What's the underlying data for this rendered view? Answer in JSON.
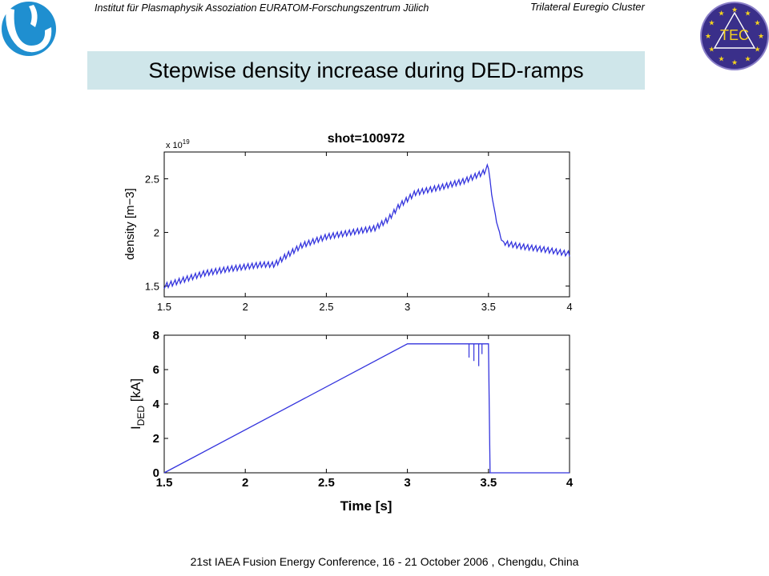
{
  "header": {
    "institute": "Institut für Plasmaphysik Assoziation EURATOM-Forschungszentrum Jülich",
    "cluster": "Trilateral Euregio Cluster",
    "tec_logo_text": "TEC"
  },
  "title": "Stepwise density increase during DED-ramps",
  "footer": "21st IAEA Fusion Energy Conference, 16 - 21 October 2006 , Chengdu, China",
  "colors": {
    "title_bg": "#cfe6ea",
    "line": "#3333dd",
    "logo_blue": "#1f8fd0",
    "tec_bg": "#3a2f8a",
    "tec_star": "#f4d21e"
  },
  "chart_data": [
    {
      "type": "line",
      "title": "shot=100972",
      "xlabel": "",
      "ylabel": "density [m−3]",
      "y_multiplier": "x 10",
      "y_multiplier_exp": "19",
      "xlim": [
        1.5,
        4
      ],
      "ylim": [
        1.4,
        2.75
      ],
      "xticks": [
        "1.5",
        "2",
        "2.5",
        "3",
        "3.5",
        "4"
      ],
      "yticks": [
        "1.5",
        "2",
        "2.5"
      ],
      "grid": false,
      "series": [
        {
          "x": [
            1.5,
            1.6,
            1.75,
            1.9,
            2.0,
            2.1,
            2.18,
            2.25,
            2.35,
            2.5,
            2.65,
            2.8,
            2.88,
            2.95,
            3.05,
            3.2,
            3.35,
            3.47,
            3.5,
            3.52,
            3.55,
            3.58,
            3.6,
            3.7,
            3.85,
            4.0
          ],
          "values": [
            1.5,
            1.55,
            1.62,
            1.66,
            1.68,
            1.7,
            1.7,
            1.78,
            1.88,
            1.96,
            2.0,
            2.04,
            2.12,
            2.25,
            2.37,
            2.42,
            2.48,
            2.56,
            2.62,
            2.35,
            2.1,
            1.93,
            1.9,
            1.87,
            1.84,
            1.8
          ],
          "oscillation_amplitude": 0.05
        }
      ]
    },
    {
      "type": "line",
      "title": "",
      "xlabel": "Time [s]",
      "ylabel": "I",
      "ylabel_sub": "DED",
      "ylabel_unit": " [kA]",
      "xlim": [
        1.5,
        4
      ],
      "ylim": [
        0,
        8
      ],
      "xticks": [
        "1.5",
        "2",
        "2.5",
        "3",
        "3.5",
        "4"
      ],
      "yticks": [
        "0",
        "2",
        "4",
        "6",
        "8"
      ],
      "grid": false,
      "series": [
        {
          "x": [
            1.5,
            3.0,
            3.49,
            3.5,
            3.51,
            4.0
          ],
          "values": [
            0,
            7.5,
            7.5,
            7.5,
            0,
            0
          ],
          "spikes": [
            {
              "x": 3.38,
              "value": 6.7
            },
            {
              "x": 3.41,
              "value": 6.5
            },
            {
              "x": 3.44,
              "value": 6.2
            },
            {
              "x": 3.46,
              "value": 6.9
            }
          ]
        }
      ]
    }
  ]
}
